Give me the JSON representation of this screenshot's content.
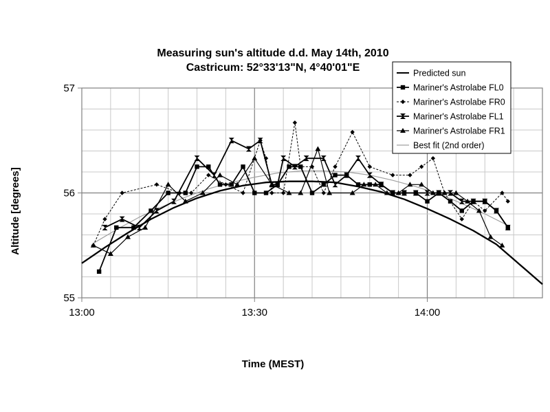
{
  "chart_data": {
    "type": "line",
    "title": "Measuring sun's altitude d.d. May 14th, 2010",
    "subtitle": "Castricum: 52°33'13\"N, 4°40'01\"E",
    "xlabel": "Time (MEST)",
    "ylabel": "Altitude [degrees]",
    "x_unit": "minutes after 13:00",
    "xlim": [
      0,
      80
    ],
    "ylim": [
      55,
      57
    ],
    "x_ticks": [
      {
        "value": 0,
        "label": "13:00"
      },
      {
        "value": 30,
        "label": "13:30"
      },
      {
        "value": 60,
        "label": "14:00"
      }
    ],
    "y_ticks": [
      {
        "value": 55,
        "label": "55"
      },
      {
        "value": 56,
        "label": "56"
      },
      {
        "value": 57,
        "label": "57"
      }
    ],
    "grid": true,
    "legend_position": "top-right",
    "series": [
      {
        "name": "Predicted sun",
        "style": "thick-curve",
        "x": [
          0,
          4,
          8,
          12,
          16,
          20,
          24,
          28,
          32,
          36,
          40,
          44,
          48,
          52,
          56,
          60,
          64,
          68,
          72,
          76,
          80
        ],
        "y": [
          55.33,
          55.48,
          55.62,
          55.75,
          55.86,
          55.95,
          56.02,
          56.07,
          56.1,
          56.11,
          56.11,
          56.1,
          56.06,
          56.01,
          55.94,
          55.85,
          55.75,
          55.64,
          55.51,
          55.32,
          55.13
        ]
      },
      {
        "name": "Mariner's Astrolabe FL0",
        "marker": "square",
        "x": [
          3,
          6,
          9,
          12,
          15,
          18,
          20,
          22,
          24,
          26,
          28,
          30,
          32,
          34,
          36,
          38,
          40,
          42,
          44,
          46,
          48,
          50,
          52,
          54,
          56,
          58,
          60,
          62,
          64,
          66,
          68,
          70,
          72,
          74
        ],
        "y": [
          55.25,
          55.67,
          55.67,
          55.83,
          56.0,
          56.0,
          56.25,
          56.25,
          56.08,
          56.08,
          56.25,
          56.0,
          56.0,
          56.08,
          56.25,
          56.25,
          56.0,
          56.08,
          56.17,
          56.17,
          56.08,
          56.08,
          56.08,
          56.0,
          56.0,
          56.0,
          55.92,
          56.0,
          55.92,
          55.83,
          55.92,
          55.92,
          55.83,
          55.67
        ]
      },
      {
        "name": "Mariner's Astrolabe FR0",
        "marker": "diamond",
        "dashed": true,
        "x": [
          2,
          4,
          7,
          13,
          17,
          19,
          22,
          25,
          28,
          31,
          32,
          33,
          35,
          37,
          38,
          40,
          42,
          44,
          47,
          50,
          54,
          57,
          59,
          61,
          63,
          66,
          68,
          70,
          73,
          74
        ],
        "y": [
          55.5,
          55.75,
          56.0,
          56.08,
          56.0,
          56.0,
          56.17,
          56.08,
          56.0,
          56.5,
          56.33,
          56.0,
          56.0,
          56.67,
          56.25,
          56.25,
          56.0,
          56.25,
          56.58,
          56.25,
          56.17,
          56.17,
          56.25,
          56.33,
          56.0,
          55.75,
          55.92,
          55.83,
          56.0,
          55.92
        ]
      },
      {
        "name": "Mariner's Astrolabe FL1",
        "marker": "bowtie",
        "x": [
          4,
          7,
          10,
          13,
          16,
          20,
          23,
          26,
          29,
          31,
          33,
          34,
          35,
          37,
          39,
          42,
          44,
          46,
          48,
          50,
          52,
          54,
          56,
          58,
          60,
          62,
          64,
          66,
          68,
          70,
          72,
          74
        ],
        "y": [
          55.67,
          55.75,
          55.67,
          55.83,
          55.92,
          56.33,
          56.17,
          56.5,
          56.42,
          56.5,
          56.08,
          56.08,
          56.33,
          56.25,
          56.33,
          56.33,
          56.08,
          56.17,
          56.33,
          56.17,
          56.08,
          56.0,
          56.0,
          56.0,
          56.0,
          56.0,
          56.0,
          55.92,
          55.92,
          55.92,
          55.83,
          55.67
        ]
      },
      {
        "name": "Mariner's Astrolabe FR1",
        "marker": "triangle",
        "x": [
          2,
          5,
          8,
          11,
          15,
          18,
          21,
          24,
          27,
          30,
          33,
          36,
          38,
          41,
          43,
          47,
          49,
          51,
          53,
          55,
          57,
          59,
          61,
          63,
          65,
          67,
          69,
          71,
          73
        ],
        "y": [
          55.5,
          55.42,
          55.58,
          55.67,
          56.08,
          55.92,
          56.0,
          56.17,
          56.08,
          56.33,
          56.08,
          56.0,
          56.0,
          56.42,
          56.0,
          56.0,
          56.08,
          56.08,
          56.0,
          56.0,
          56.08,
          56.08,
          56.0,
          56.0,
          56.0,
          55.92,
          55.83,
          55.58,
          55.5
        ]
      },
      {
        "name": "Best fit (2nd order)",
        "style": "thin-gray-curve",
        "x": [
          2,
          6,
          10,
          14,
          18,
          22,
          26,
          30,
          34,
          38,
          42,
          46,
          50,
          54,
          58,
          62,
          66,
          70,
          74
        ],
        "y": [
          55.52,
          55.65,
          55.77,
          55.87,
          55.96,
          56.04,
          56.1,
          56.15,
          56.19,
          56.21,
          56.21,
          56.2,
          56.17,
          56.12,
          56.06,
          55.99,
          55.9,
          55.8,
          55.69
        ]
      }
    ]
  },
  "colors": {
    "predicted": "#000000",
    "measured": "#000000",
    "best_fit": "#a0a0a0",
    "grid": "#c8c8c8",
    "major_grid": "#808080",
    "frame": "#808080"
  }
}
